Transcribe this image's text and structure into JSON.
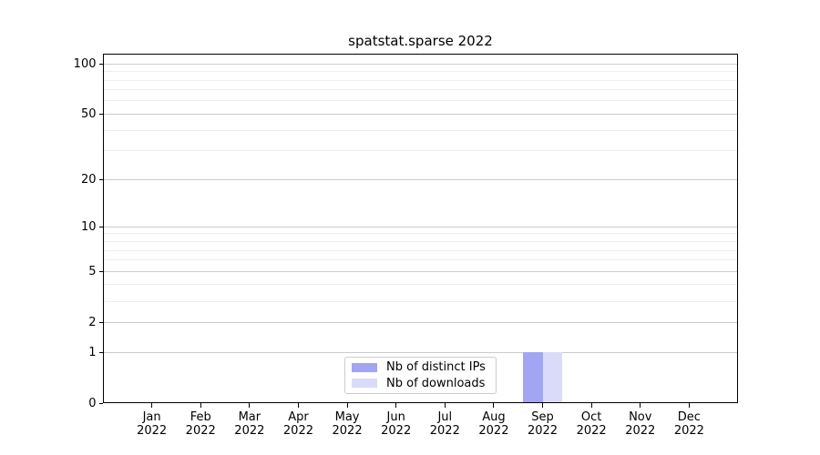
{
  "chart_data": {
    "type": "bar",
    "title": "spatstat.sparse 2022",
    "categories": [
      "Jan 2022",
      "Feb 2022",
      "Mar 2022",
      "Apr 2022",
      "May 2022",
      "Jun 2022",
      "Jul 2022",
      "Aug 2022",
      "Sep 2022",
      "Oct 2022",
      "Nov 2022",
      "Dec 2022"
    ],
    "series": [
      {
        "name": "Nb of distinct IPs",
        "color": "#a2a5f1",
        "values": [
          0,
          0,
          0,
          0,
          0,
          0,
          0,
          0,
          1,
          0,
          0,
          0
        ]
      },
      {
        "name": "Nb of downloads",
        "color": "#d9dbf8",
        "values": [
          0,
          0,
          0,
          0,
          0,
          0,
          0,
          0,
          1,
          0,
          0,
          0
        ]
      }
    ],
    "y_axis": {
      "scale": "log1p",
      "major_ticks": [
        0,
        1,
        2,
        5,
        10,
        20,
        50,
        100
      ],
      "minor_gridlines": [
        3,
        4,
        6,
        7,
        8,
        9,
        30,
        40,
        60,
        70,
        80,
        90
      ],
      "max": 115
    },
    "legend": {
      "position": "lower center"
    },
    "style": {
      "grid_major_color": "#cbcbcb",
      "grid_minor_color": "#ededed",
      "axis_color": "#000000",
      "text_color": "#000000",
      "background": "#ffffff",
      "bar_width": 21.5
    }
  }
}
